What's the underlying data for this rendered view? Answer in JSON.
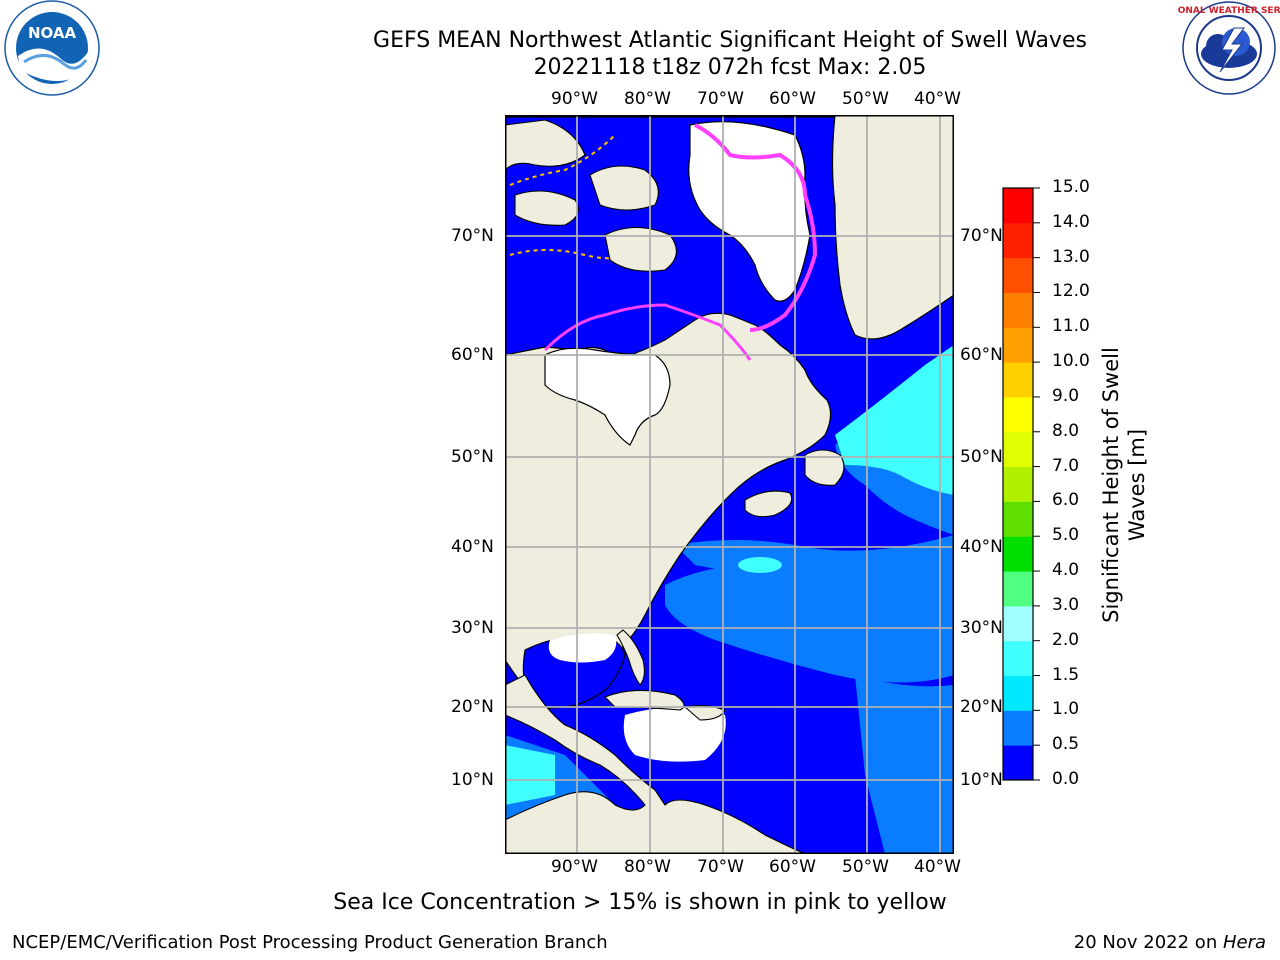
{
  "header": {
    "title_line1": "GEFS MEAN Northwest Atlantic Significant Height of Swell Waves",
    "title_line2": "20221118 t18z 072h fcst   Max: 2.05",
    "logo_left_text": "NOAA",
    "logo_right_text": "NATIONAL WEATHER SERVICE"
  },
  "map": {
    "lon_labels": [
      "90°W",
      "80°W",
      "70°W",
      "60°W",
      "50°W",
      "40°W"
    ],
    "lat_labels": [
      "70°N",
      "60°N",
      "50°N",
      "40°N",
      "30°N",
      "20°N",
      "10°N"
    ],
    "colors": {
      "land": "#efedde",
      "ice_area": "#ffffff",
      "sea_ice": "#ff40ff",
      "grid": "#b0b0b0"
    }
  },
  "colorbar": {
    "label_line1": "Significant Height of Swell",
    "label_line2": "Waves [m]",
    "ticks": [
      "0.0",
      "0.5",
      "1.0",
      "1.5",
      "2.0",
      "3.0",
      "4.0",
      "5.0",
      "6.0",
      "7.0",
      "8.0",
      "9.0",
      "10.0",
      "11.0",
      "12.0",
      "13.0",
      "14.0",
      "15.0"
    ],
    "colors": [
      "#0000ff",
      "#0a7cff",
      "#00e8ff",
      "#40ffff",
      "#a0ffff",
      "#50ff80",
      "#00e000",
      "#60e000",
      "#b0f000",
      "#e0ff00",
      "#ffff00",
      "#ffd000",
      "#ffa000",
      "#ff8000",
      "#ff5000",
      "#ff2000",
      "#ff0000"
    ]
  },
  "footer": {
    "note": "Sea Ice Concentration > 15% is shown in pink to yellow",
    "left": "NCEP/EMC/Verification Post Processing Product Generation Branch",
    "right_date": "20 Nov 2022 on ",
    "right_host": "Hera"
  }
}
